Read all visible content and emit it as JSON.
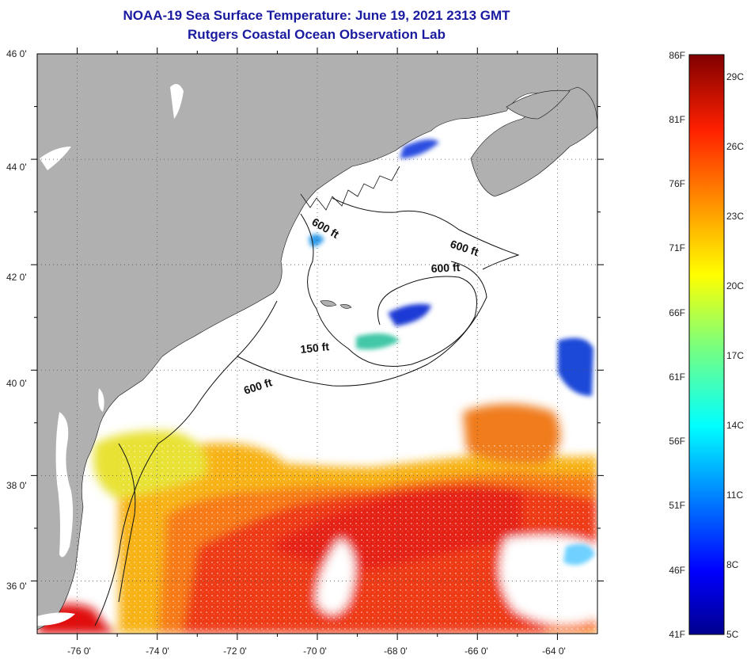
{
  "title": "NOAA-19 Sea Surface Temperature:  June 19, 2021 2313 GMT",
  "subtitle": "Rutgers Coastal Ocean Observation Lab",
  "map": {
    "lat_labels": [
      "46 0'",
      "44 0'",
      "42 0'",
      "40 0'",
      "38 0'",
      "36 0'"
    ],
    "lon_labels": [
      "-76 0'",
      "-74 0'",
      "-72 0'",
      "-70 0'",
      "-68 0'",
      "-66 0'",
      "-64 0'"
    ],
    "lat_range": [
      35,
      46
    ],
    "lon_range": [
      -77,
      -63
    ],
    "isobath_labels": [
      "600 ft",
      "600 ft",
      "600 ft",
      "150 ft",
      "600 ft"
    ],
    "land_color": "#b0b0b0",
    "cloud_color": "#ffffff"
  },
  "colorbar": {
    "fahrenheit_labels": [
      "86F",
      "81F",
      "76F",
      "71F",
      "66F",
      "61F",
      "56F",
      "51F",
      "46F",
      "41F"
    ],
    "celsius_labels": [
      "29C",
      "26C",
      "23C",
      "20C",
      "17C",
      "14C",
      "11C",
      "8C",
      "5C"
    ],
    "range_f": [
      41,
      86
    ],
    "range_c": [
      5,
      30
    ],
    "colormap": "jet"
  }
}
